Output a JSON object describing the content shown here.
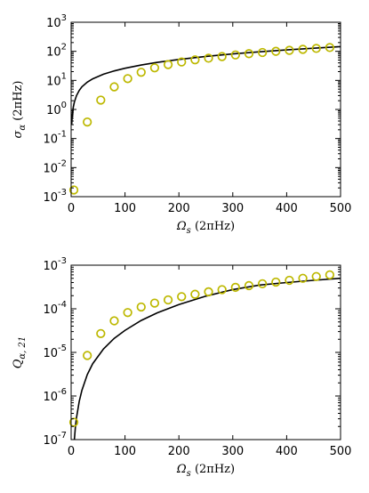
{
  "chart_data": [
    {
      "type": "line",
      "title": "",
      "xlabel": "Ω_s (2πHz)",
      "xlabel_main": "Ω",
      "xlabel_sub": "s",
      "xlabel_unit": " (2πHz)",
      "ylabel": "σ_α (2πHz)",
      "ylabel_main": "σ",
      "ylabel_sub": "α",
      "ylabel_unit": " (2πHz)",
      "xlim": [
        0,
        500
      ],
      "ylim": [
        0.001,
        1000
      ],
      "yscale": "log",
      "grid": false,
      "x_ticks": [
        0,
        100,
        200,
        300,
        400,
        500
      ],
      "x_tick_labels": [
        "0",
        "100",
        "200",
        "300",
        "400",
        "500"
      ],
      "y_ticks": [
        0.001,
        0.01,
        0.1,
        1,
        10,
        100,
        1000
      ],
      "y_tick_labels": [
        {
          "base": "10",
          "exp": "-3"
        },
        {
          "base": "10",
          "exp": "-2"
        },
        {
          "base": "10",
          "exp": "-1"
        },
        {
          "base": "10",
          "exp": "0"
        },
        {
          "base": "10",
          "exp": "1"
        },
        {
          "base": "10",
          "exp": "2"
        },
        {
          "base": "10",
          "exp": "3"
        }
      ],
      "series": [
        {
          "style": "line",
          "color": "#000000",
          "x": [
            1,
            2,
            4,
            6,
            10,
            15,
            20,
            30,
            40,
            60,
            80,
            100,
            130,
            160,
            200,
            250,
            300,
            350,
            400,
            450,
            500
          ],
          "y": [
            0.3,
            0.6,
            1.2,
            1.8,
            3.0,
            4.5,
            6.0,
            8.7,
            11.3,
            16.3,
            21.2,
            26.2,
            33.8,
            41.8,
            52.5,
            66.5,
            81.3,
            96.4,
            112,
            128,
            145
          ]
        },
        {
          "style": "marker",
          "color": "#bdb800",
          "x": [
            5,
            30,
            55,
            80,
            105,
            130,
            155,
            180,
            205,
            230,
            255,
            280,
            305,
            330,
            355,
            380,
            405,
            430,
            455,
            480
          ],
          "y": [
            0.0017,
            0.37,
            2.1,
            6.0,
            11.5,
            19,
            27,
            35,
            43,
            51,
            58,
            66,
            75,
            83,
            91,
            100,
            108,
            117,
            126,
            135
          ]
        }
      ]
    },
    {
      "type": "line",
      "title": "",
      "xlabel": "Ω_s (2πHz)",
      "xlabel_main": "Ω",
      "xlabel_sub": "s",
      "xlabel_unit": " (2πHz)",
      "ylabel": "Q_α,21",
      "ylabel_main": "Q",
      "ylabel_sub": "α, 21",
      "ylabel_unit": "",
      "xlim": [
        0,
        500
      ],
      "ylim": [
        1e-07,
        0.001
      ],
      "yscale": "log",
      "grid": false,
      "x_ticks": [
        0,
        100,
        200,
        300,
        400,
        500
      ],
      "x_tick_labels": [
        "0",
        "100",
        "200",
        "300",
        "400",
        "500"
      ],
      "y_ticks": [
        1e-07,
        1e-06,
        1e-05,
        0.0001,
        0.001
      ],
      "y_tick_labels": [
        {
          "base": "10",
          "exp": "-7"
        },
        {
          "base": "10",
          "exp": "-6"
        },
        {
          "base": "10",
          "exp": "-5"
        },
        {
          "base": "10",
          "exp": "-4"
        },
        {
          "base": "10",
          "exp": "-3"
        }
      ],
      "series": [
        {
          "style": "line",
          "color": "#000000",
          "x": [
            6,
            8,
            10,
            15,
            20,
            30,
            40,
            60,
            80,
            100,
            130,
            160,
            200,
            250,
            300,
            350,
            400,
            450,
            500
          ],
          "y": [
            1e-07,
            2e-07,
            3.2e-07,
            7.5e-07,
            1.35e-06,
            3.1e-06,
            5.5e-06,
            1.2e-05,
            2.1e-05,
            3.2e-05,
            5.4e-05,
            8.1e-05,
            0.000125,
            0.000195,
            0.000275,
            0.00035,
            0.0004,
            0.00045,
            0.0005
          ]
        },
        {
          "style": "marker",
          "color": "#bdb800",
          "x": [
            5,
            30,
            55,
            80,
            105,
            130,
            155,
            180,
            205,
            230,
            255,
            280,
            305,
            330,
            355,
            380,
            405,
            430,
            455,
            480
          ],
          "y": [
            2.5e-07,
            8.5e-06,
            2.7e-05,
            5.3e-05,
            8.2e-05,
            0.00011,
            0.000135,
            0.00016,
            0.00019,
            0.000215,
            0.000245,
            0.000275,
            0.00031,
            0.00034,
            0.000375,
            0.00041,
            0.00045,
            0.0005,
            0.00055,
            0.0006
          ]
        }
      ]
    }
  ]
}
